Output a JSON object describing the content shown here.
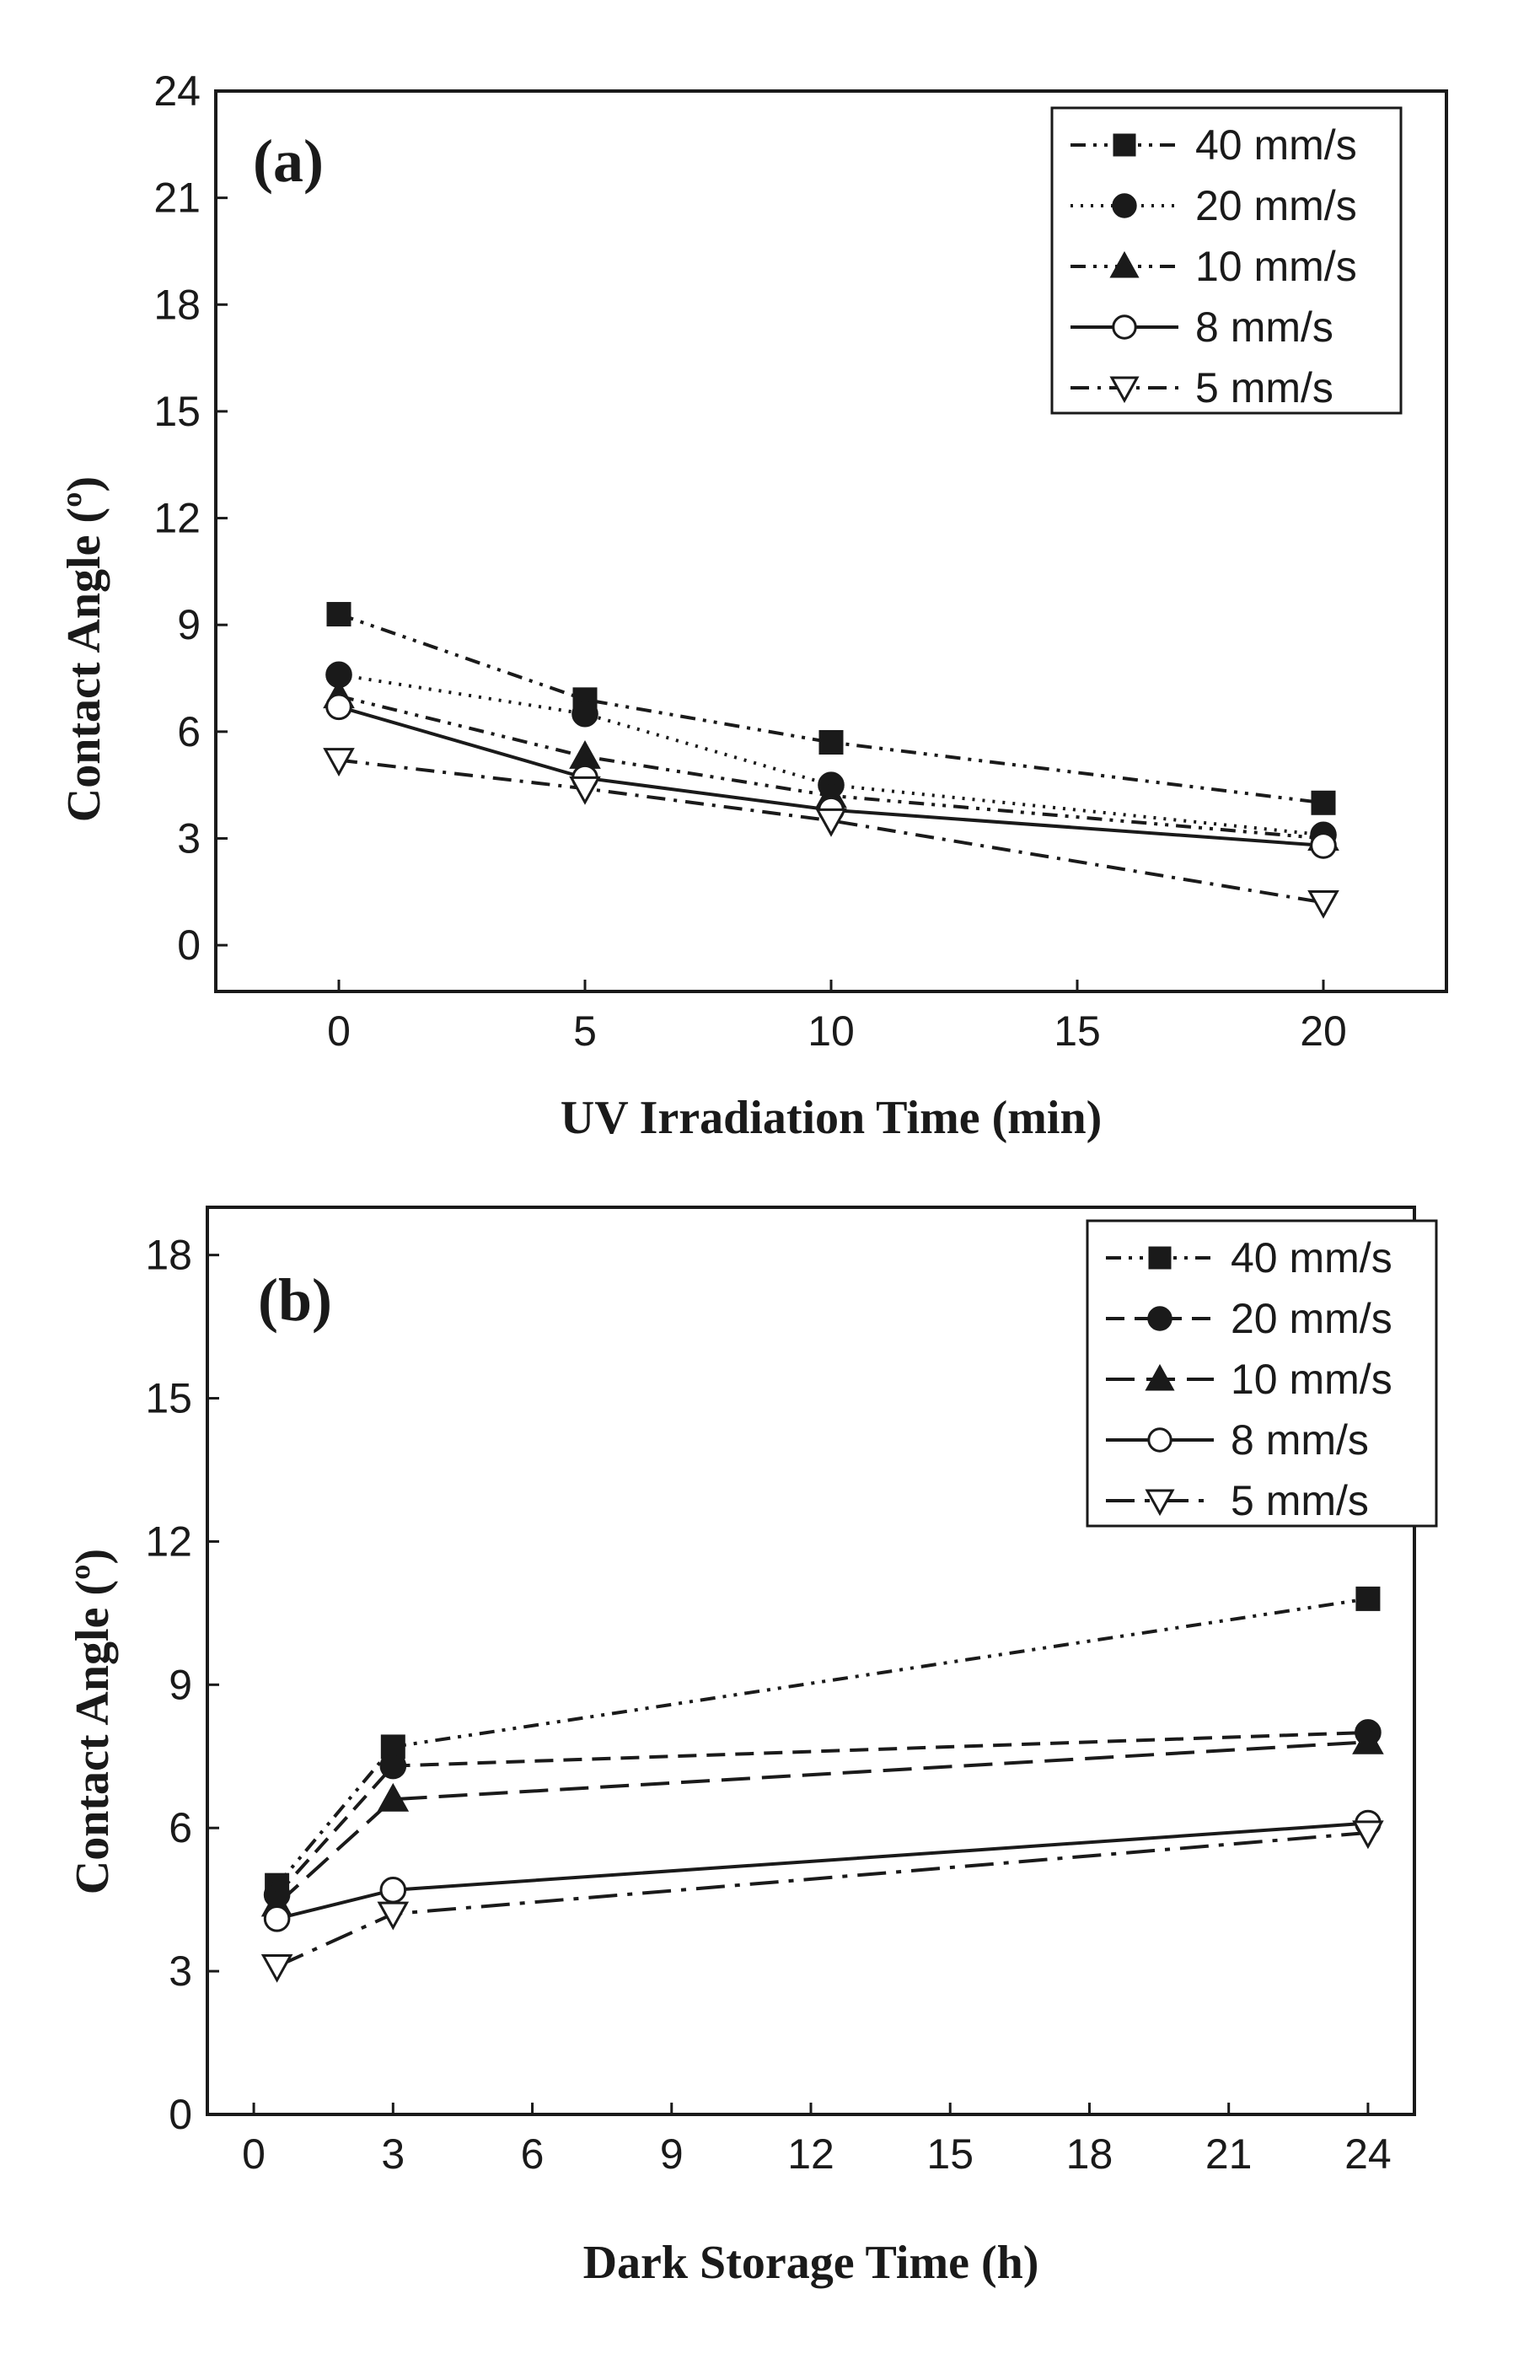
{
  "chart_data": [
    {
      "type": "line",
      "panel_label": "(a)",
      "xlabel": "UV Irradiation Time (min)",
      "ylabel": "Contact Angle (º)",
      "xlim": [
        -2.5,
        22.5
      ],
      "ylim": [
        -1.3,
        24
      ],
      "xticks": [
        0,
        5,
        10,
        15,
        20
      ],
      "yticks": [
        0,
        3,
        6,
        9,
        12,
        15,
        18,
        21,
        24
      ],
      "legend_position": "top-right",
      "grid": false,
      "series": [
        {
          "name": "40 mm/s",
          "marker": "square",
          "fill": "filled",
          "dash": "dashdotdot",
          "x": [
            0,
            5,
            10,
            20
          ],
          "values": [
            9.3,
            6.9,
            5.7,
            4.0
          ]
        },
        {
          "name": "20 mm/s",
          "marker": "circle",
          "fill": "filled",
          "dash": "dotted",
          "x": [
            0,
            5,
            10,
            20
          ],
          "values": [
            7.6,
            6.5,
            4.5,
            3.1
          ]
        },
        {
          "name": "10 mm/s",
          "marker": "triangle-up",
          "fill": "filled",
          "dash": "dashdotdot",
          "x": [
            0,
            5,
            10,
            20
          ],
          "values": [
            7.0,
            5.3,
            4.2,
            3.0
          ]
        },
        {
          "name": "8 mm/s",
          "marker": "circle",
          "fill": "open",
          "dash": "solid",
          "x": [
            0,
            5,
            10,
            20
          ],
          "values": [
            6.7,
            4.7,
            3.8,
            2.8
          ]
        },
        {
          "name": "5 mm/s",
          "marker": "triangle-down",
          "fill": "open",
          "dash": "dashdot",
          "x": [
            0,
            5,
            10,
            20
          ],
          "values": [
            5.2,
            4.4,
            3.5,
            1.2
          ]
        }
      ]
    },
    {
      "type": "line",
      "panel_label": "(b)",
      "xlabel": "Dark Storage Time (h)",
      "ylabel": "Contact Angle (º)",
      "xlim": [
        -1,
        25
      ],
      "ylim": [
        0,
        19
      ],
      "xticks": [
        0,
        3,
        6,
        9,
        12,
        15,
        18,
        21,
        24
      ],
      "yticks": [
        0,
        3,
        6,
        9,
        12,
        15,
        18
      ],
      "legend_position": "top-right",
      "grid": false,
      "series": [
        {
          "name": "40 mm/s",
          "marker": "square",
          "fill": "filled",
          "dash": "dashdotdot",
          "x": [
            0.5,
            3,
            24
          ],
          "values": [
            4.8,
            7.7,
            10.8
          ]
        },
        {
          "name": "20 mm/s",
          "marker": "circle",
          "fill": "filled",
          "dash": "dashed",
          "x": [
            0.5,
            3,
            24
          ],
          "values": [
            4.6,
            7.3,
            8.0
          ]
        },
        {
          "name": "10 mm/s",
          "marker": "triangle-up",
          "fill": "filled",
          "dash": "longdash",
          "x": [
            0.5,
            3,
            24
          ],
          "values": [
            4.4,
            6.6,
            7.8
          ]
        },
        {
          "name": "8 mm/s",
          "marker": "circle",
          "fill": "open",
          "dash": "solid",
          "x": [
            0.5,
            3,
            24
          ],
          "values": [
            4.1,
            4.7,
            6.1
          ]
        },
        {
          "name": "5 mm/s",
          "marker": "triangle-down",
          "fill": "open",
          "dash": "longdashdot",
          "x": [
            0.5,
            3,
            24
          ],
          "values": [
            3.1,
            4.2,
            5.9
          ]
        }
      ]
    }
  ]
}
